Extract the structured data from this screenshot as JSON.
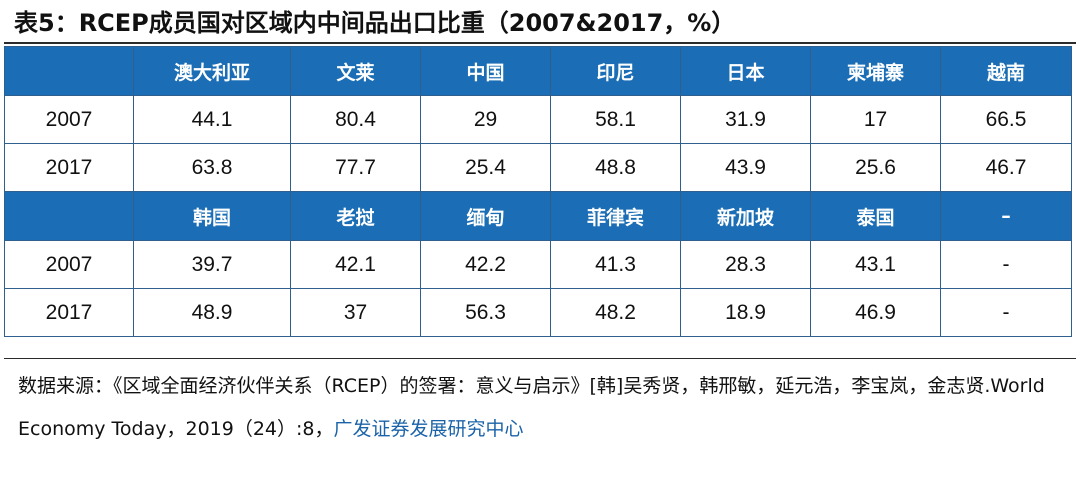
{
  "title": "表5：RCEP成员国对区域内中间品出口比重（2007&2017，%）",
  "table": {
    "header1": [
      "",
      "澳大利亚",
      "文莱",
      "中国",
      "印尼",
      "日本",
      "柬埔寨",
      "越南"
    ],
    "rows1": [
      [
        "2007",
        "44.1",
        "80.4",
        "29",
        "58.1",
        "31.9",
        "17",
        "66.5"
      ],
      [
        "2017",
        "63.8",
        "77.7",
        "25.4",
        "48.8",
        "43.9",
        "25.6",
        "46.7"
      ]
    ],
    "header2": [
      "",
      "韩国",
      "老挝",
      "缅甸",
      "菲律宾",
      "新加坡",
      "泰国",
      "–"
    ],
    "rows2": [
      [
        "2007",
        "39.7",
        "42.1",
        "42.2",
        "41.3",
        "28.3",
        "43.1",
        "-"
      ],
      [
        "2017",
        "48.9",
        "37",
        "56.3",
        "48.2",
        "18.9",
        "46.9",
        "-"
      ]
    ]
  },
  "source": {
    "prefix": "数据来源：",
    "citation": "《区域全面经济伙伴关系（RCEP）的签署：意义与启示》[韩]吴秀贤，韩邢敏，延元浩，李宝岚，金志贤.World Economy Today，2019（24）:8，",
    "org": "广发证券发展研究中心"
  }
}
